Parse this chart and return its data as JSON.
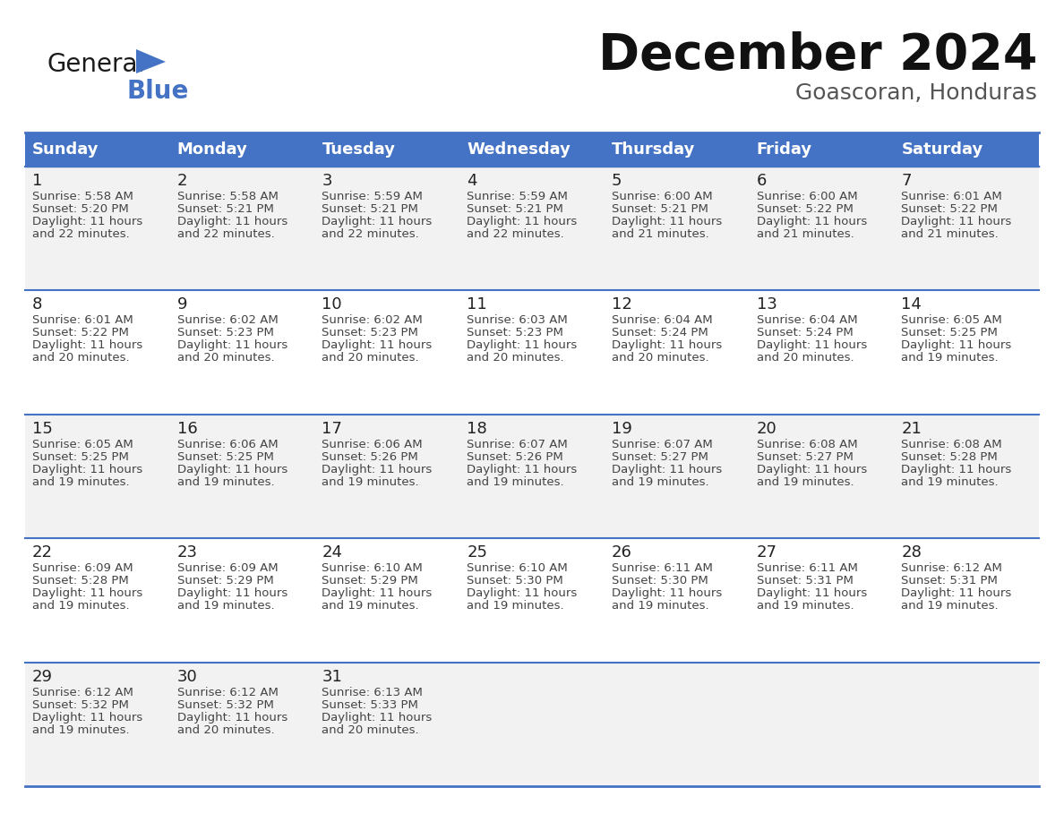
{
  "title": "December 2024",
  "subtitle": "Goascoran, Honduras",
  "header_color": "#4472C4",
  "header_text_color": "#FFFFFF",
  "days_of_week": [
    "Sunday",
    "Monday",
    "Tuesday",
    "Wednesday",
    "Thursday",
    "Friday",
    "Saturday"
  ],
  "bg_color": "#FFFFFF",
  "cell_bg_even": "#F2F2F2",
  "cell_bg_odd": "#FFFFFF",
  "border_color": "#4472C4",
  "text_color": "#444444",
  "calendar": [
    [
      {
        "day": 1,
        "sunrise": "5:58 AM",
        "sunset": "5:20 PM",
        "daylight": "11 hours and 22 minutes."
      },
      {
        "day": 2,
        "sunrise": "5:58 AM",
        "sunset": "5:21 PM",
        "daylight": "11 hours and 22 minutes."
      },
      {
        "day": 3,
        "sunrise": "5:59 AM",
        "sunset": "5:21 PM",
        "daylight": "11 hours and 22 minutes."
      },
      {
        "day": 4,
        "sunrise": "5:59 AM",
        "sunset": "5:21 PM",
        "daylight": "11 hours and 22 minutes."
      },
      {
        "day": 5,
        "sunrise": "6:00 AM",
        "sunset": "5:21 PM",
        "daylight": "11 hours and 21 minutes."
      },
      {
        "day": 6,
        "sunrise": "6:00 AM",
        "sunset": "5:22 PM",
        "daylight": "11 hours and 21 minutes."
      },
      {
        "day": 7,
        "sunrise": "6:01 AM",
        "sunset": "5:22 PM",
        "daylight": "11 hours and 21 minutes."
      }
    ],
    [
      {
        "day": 8,
        "sunrise": "6:01 AM",
        "sunset": "5:22 PM",
        "daylight": "11 hours and 20 minutes."
      },
      {
        "day": 9,
        "sunrise": "6:02 AM",
        "sunset": "5:23 PM",
        "daylight": "11 hours and 20 minutes."
      },
      {
        "day": 10,
        "sunrise": "6:02 AM",
        "sunset": "5:23 PM",
        "daylight": "11 hours and 20 minutes."
      },
      {
        "day": 11,
        "sunrise": "6:03 AM",
        "sunset": "5:23 PM",
        "daylight": "11 hours and 20 minutes."
      },
      {
        "day": 12,
        "sunrise": "6:04 AM",
        "sunset": "5:24 PM",
        "daylight": "11 hours and 20 minutes."
      },
      {
        "day": 13,
        "sunrise": "6:04 AM",
        "sunset": "5:24 PM",
        "daylight": "11 hours and 20 minutes."
      },
      {
        "day": 14,
        "sunrise": "6:05 AM",
        "sunset": "5:25 PM",
        "daylight": "11 hours and 19 minutes."
      }
    ],
    [
      {
        "day": 15,
        "sunrise": "6:05 AM",
        "sunset": "5:25 PM",
        "daylight": "11 hours and 19 minutes."
      },
      {
        "day": 16,
        "sunrise": "6:06 AM",
        "sunset": "5:25 PM",
        "daylight": "11 hours and 19 minutes."
      },
      {
        "day": 17,
        "sunrise": "6:06 AM",
        "sunset": "5:26 PM",
        "daylight": "11 hours and 19 minutes."
      },
      {
        "day": 18,
        "sunrise": "6:07 AM",
        "sunset": "5:26 PM",
        "daylight": "11 hours and 19 minutes."
      },
      {
        "day": 19,
        "sunrise": "6:07 AM",
        "sunset": "5:27 PM",
        "daylight": "11 hours and 19 minutes."
      },
      {
        "day": 20,
        "sunrise": "6:08 AM",
        "sunset": "5:27 PM",
        "daylight": "11 hours and 19 minutes."
      },
      {
        "day": 21,
        "sunrise": "6:08 AM",
        "sunset": "5:28 PM",
        "daylight": "11 hours and 19 minutes."
      }
    ],
    [
      {
        "day": 22,
        "sunrise": "6:09 AM",
        "sunset": "5:28 PM",
        "daylight": "11 hours and 19 minutes."
      },
      {
        "day": 23,
        "sunrise": "6:09 AM",
        "sunset": "5:29 PM",
        "daylight": "11 hours and 19 minutes."
      },
      {
        "day": 24,
        "sunrise": "6:10 AM",
        "sunset": "5:29 PM",
        "daylight": "11 hours and 19 minutes."
      },
      {
        "day": 25,
        "sunrise": "6:10 AM",
        "sunset": "5:30 PM",
        "daylight": "11 hours and 19 minutes."
      },
      {
        "day": 26,
        "sunrise": "6:11 AM",
        "sunset": "5:30 PM",
        "daylight": "11 hours and 19 minutes."
      },
      {
        "day": 27,
        "sunrise": "6:11 AM",
        "sunset": "5:31 PM",
        "daylight": "11 hours and 19 minutes."
      },
      {
        "day": 28,
        "sunrise": "6:12 AM",
        "sunset": "5:31 PM",
        "daylight": "11 hours and 19 minutes."
      }
    ],
    [
      {
        "day": 29,
        "sunrise": "6:12 AM",
        "sunset": "5:32 PM",
        "daylight": "11 hours and 19 minutes."
      },
      {
        "day": 30,
        "sunrise": "6:12 AM",
        "sunset": "5:32 PM",
        "daylight": "11 hours and 20 minutes."
      },
      {
        "day": 31,
        "sunrise": "6:13 AM",
        "sunset": "5:33 PM",
        "daylight": "11 hours and 20 minutes."
      },
      null,
      null,
      null,
      null
    ]
  ],
  "logo_general_color": "#1a1a1a",
  "logo_blue_color": "#4472C4",
  "title_fontsize": 40,
  "subtitle_fontsize": 18,
  "header_fontsize": 13,
  "day_fontsize": 13,
  "cell_fontsize": 9.5
}
